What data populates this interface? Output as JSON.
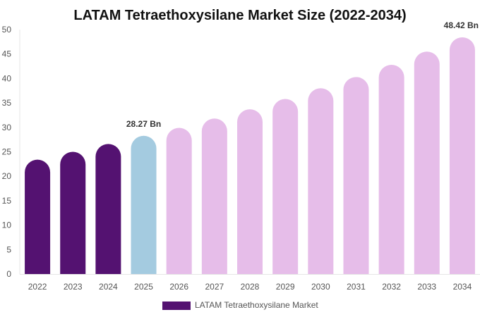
{
  "chart_data": {
    "type": "bar",
    "title": "LATAM Tetraethoxysilane Market Size (2022-2034)",
    "xlabel": "",
    "ylabel": "",
    "ylim": [
      0,
      50
    ],
    "yticks": [
      0,
      5,
      10,
      15,
      20,
      25,
      30,
      35,
      40,
      45,
      50
    ],
    "grid": false,
    "legend_position": "bottom",
    "categories": [
      "2022",
      "2023",
      "2024",
      "2025",
      "2026",
      "2027",
      "2028",
      "2029",
      "2030",
      "2031",
      "2032",
      "2033",
      "2034"
    ],
    "series": [
      {
        "name": "LATAM Tetraethoxysilane Market",
        "values": [
          23.4,
          25.0,
          26.6,
          28.27,
          29.9,
          31.8,
          33.7,
          35.8,
          38.0,
          40.3,
          42.8,
          45.5,
          48.42
        ]
      }
    ],
    "bar_colors": [
      "#541271",
      "#541271",
      "#541271",
      "#a4cbe0",
      "#e6bde9",
      "#e6bde9",
      "#e6bde9",
      "#e6bde9",
      "#e6bde9",
      "#e6bde9",
      "#e6bde9",
      "#e6bde9",
      "#e6bde9"
    ],
    "legend_color": "#541271",
    "data_labels": [
      {
        "category": "2025",
        "text": "28.27 Bn"
      },
      {
        "category": "2034",
        "text": "48.42 Bn"
      }
    ]
  }
}
